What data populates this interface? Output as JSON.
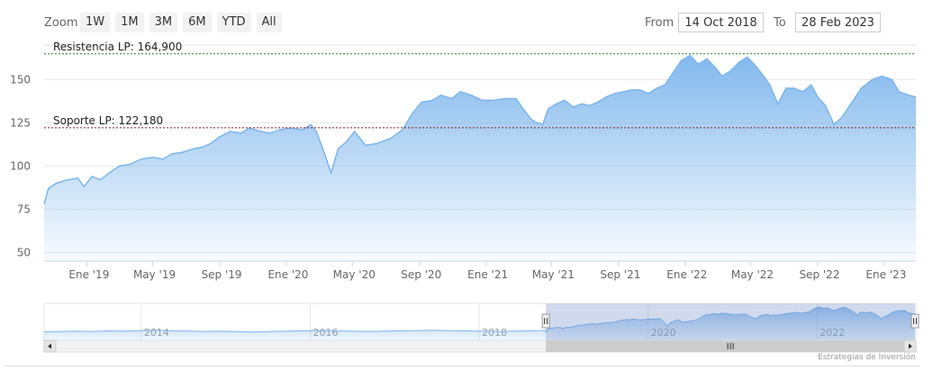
{
  "toolbar": {
    "zoom_label": "Zoom",
    "zoom_buttons": [
      "1W",
      "1M",
      "3M",
      "6M",
      "YTD",
      "All"
    ],
    "from_label": "From",
    "from_value": "14 Oct 2018",
    "to_label": "To",
    "to_value": "28 Feb 2023"
  },
  "credit": "Estrategias de Inversión",
  "colors": {
    "line": "#7cb5ec",
    "area_top": "#7cb5ec",
    "resistance": "#2a7a2a",
    "support": "#8b1a1a"
  },
  "chart_data": {
    "type": "area",
    "ylim": [
      45,
      170
    ],
    "yticks": [
      50,
      75,
      100,
      125,
      150
    ],
    "xlim": [
      "2018-10-14",
      "2023-02-28"
    ],
    "xticks": [
      {
        "date": "2019-01-01",
        "label": "Ene '19"
      },
      {
        "date": "2019-05-01",
        "label": "May '19"
      },
      {
        "date": "2019-09-01",
        "label": "Sep '19"
      },
      {
        "date": "2020-01-01",
        "label": "Ene '20"
      },
      {
        "date": "2020-05-01",
        "label": "May '20"
      },
      {
        "date": "2020-09-01",
        "label": "Sep '20"
      },
      {
        "date": "2021-01-01",
        "label": "Ene '21"
      },
      {
        "date": "2021-05-01",
        "label": "May '21"
      },
      {
        "date": "2021-09-01",
        "label": "Sep '21"
      },
      {
        "date": "2022-01-01",
        "label": "Ene '22"
      },
      {
        "date": "2022-05-01",
        "label": "May '22"
      },
      {
        "date": "2022-09-01",
        "label": "Sep '22"
      },
      {
        "date": "2023-01-01",
        "label": "Ene '23"
      }
    ],
    "series": [
      {
        "points": [
          [
            "2018-10-14",
            78
          ],
          [
            "2018-10-22",
            87
          ],
          [
            "2018-11-05",
            90
          ],
          [
            "2018-11-25",
            92
          ],
          [
            "2018-12-15",
            93
          ],
          [
            "2018-12-26",
            88
          ],
          [
            "2019-01-10",
            94
          ],
          [
            "2019-01-25",
            92
          ],
          [
            "2019-02-10",
            96
          ],
          [
            "2019-03-01",
            100
          ],
          [
            "2019-03-20",
            101
          ],
          [
            "2019-04-10",
            104
          ],
          [
            "2019-05-01",
            105
          ],
          [
            "2019-05-20",
            104
          ],
          [
            "2019-06-05",
            107
          ],
          [
            "2019-06-25",
            108
          ],
          [
            "2019-07-15",
            110
          ],
          [
            "2019-08-01",
            111
          ],
          [
            "2019-08-15",
            113
          ],
          [
            "2019-09-01",
            117
          ],
          [
            "2019-09-20",
            120
          ],
          [
            "2019-10-10",
            119
          ],
          [
            "2019-10-25",
            122
          ],
          [
            "2019-11-15",
            120
          ],
          [
            "2019-12-01",
            119
          ],
          [
            "2019-12-20",
            121
          ],
          [
            "2020-01-10",
            122
          ],
          [
            "2020-01-30",
            121
          ],
          [
            "2020-02-15",
            124
          ],
          [
            "2020-02-25",
            120
          ],
          [
            "2020-03-10",
            108
          ],
          [
            "2020-03-23",
            96
          ],
          [
            "2020-04-05",
            110
          ],
          [
            "2020-04-20",
            114
          ],
          [
            "2020-05-05",
            120
          ],
          [
            "2020-05-25",
            112
          ],
          [
            "2020-06-15",
            113
          ],
          [
            "2020-07-10",
            116
          ],
          [
            "2020-08-01",
            121
          ],
          [
            "2020-08-20",
            131
          ],
          [
            "2020-09-05",
            137
          ],
          [
            "2020-09-25",
            138
          ],
          [
            "2020-10-10",
            141
          ],
          [
            "2020-10-30",
            139
          ],
          [
            "2020-11-15",
            143
          ],
          [
            "2020-12-05",
            141
          ],
          [
            "2020-12-25",
            138
          ],
          [
            "2021-01-15",
            138
          ],
          [
            "2021-02-05",
            139
          ],
          [
            "2021-02-25",
            139
          ],
          [
            "2021-03-10",
            133
          ],
          [
            "2021-03-25",
            127
          ],
          [
            "2021-04-05",
            125
          ],
          [
            "2021-04-15",
            124
          ],
          [
            "2021-04-25",
            133
          ],
          [
            "2021-05-10",
            136
          ],
          [
            "2021-05-25",
            138
          ],
          [
            "2021-06-10",
            134
          ],
          [
            "2021-06-25",
            136
          ],
          [
            "2021-07-10",
            135
          ],
          [
            "2021-07-25",
            137
          ],
          [
            "2021-08-10",
            140
          ],
          [
            "2021-08-25",
            142
          ],
          [
            "2021-09-10",
            143
          ],
          [
            "2021-09-25",
            144
          ],
          [
            "2021-10-10",
            144
          ],
          [
            "2021-10-25",
            142
          ],
          [
            "2021-11-10",
            145
          ],
          [
            "2021-11-25",
            147
          ],
          [
            "2021-12-10",
            154
          ],
          [
            "2021-12-25",
            161
          ],
          [
            "2022-01-10",
            164
          ],
          [
            "2022-01-25",
            159
          ],
          [
            "2022-02-10",
            162
          ],
          [
            "2022-02-25",
            157
          ],
          [
            "2022-03-10",
            152
          ],
          [
            "2022-03-25",
            155
          ],
          [
            "2022-04-10",
            160
          ],
          [
            "2022-04-25",
            163
          ],
          [
            "2022-05-10",
            158
          ],
          [
            "2022-05-25",
            152
          ],
          [
            "2022-06-05",
            147
          ],
          [
            "2022-06-20",
            136
          ],
          [
            "2022-07-05",
            145
          ],
          [
            "2022-07-20",
            145
          ],
          [
            "2022-08-05",
            143
          ],
          [
            "2022-08-20",
            147
          ],
          [
            "2022-09-01",
            140
          ],
          [
            "2022-09-15",
            135
          ],
          [
            "2022-10-01",
            124
          ],
          [
            "2022-10-15",
            128
          ],
          [
            "2022-11-01",
            136
          ],
          [
            "2022-11-20",
            145
          ],
          [
            "2022-12-10",
            150
          ],
          [
            "2022-12-28",
            152
          ],
          [
            "2023-01-15",
            150
          ],
          [
            "2023-01-28",
            143
          ],
          [
            "2023-02-15",
            141
          ],
          [
            "2023-02-28",
            140
          ]
        ]
      }
    ],
    "annotations": [
      {
        "label": "Resistencia LP: 164,900",
        "y": 164.9
      },
      {
        "label": "Soporte LP: 122,180",
        "y": 122.18
      }
    ],
    "navigator": {
      "labels": [
        "2014",
        "2016",
        "2018",
        "2020",
        "2022"
      ],
      "label_years": [
        2014,
        2016,
        2018,
        2020,
        2022
      ],
      "xlim_years": [
        2012.85,
        2023.17
      ],
      "selected_years": [
        2018.79,
        2023.16
      ]
    }
  }
}
